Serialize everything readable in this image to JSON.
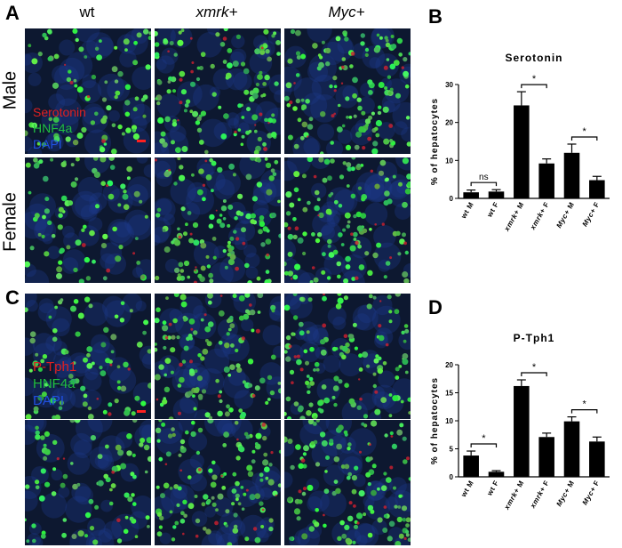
{
  "panel_letters": {
    "a": "A",
    "b": "B",
    "c": "C",
    "d": "D"
  },
  "columns": {
    "wt": "wt",
    "xmrk": "xmrk+",
    "myc": "Myc+"
  },
  "rows": {
    "male": "Male",
    "female": "Female"
  },
  "legend_top": {
    "l1": "Serotonin",
    "l2": "HNF4a",
    "l3": "DAPI"
  },
  "legend_bottom": {
    "l1": "P-Tph1",
    "l2": "HNF4a",
    "l3": "DAPI"
  },
  "colors": {
    "red": "#e02020",
    "green": "#20c040",
    "blue": "#2050e0",
    "bar": "#000000"
  },
  "chart_data": [
    {
      "type": "bar",
      "title": "Serotonin",
      "ylabel": "% of hepatocytes",
      "xlabel": "",
      "ylim": [
        0,
        30
      ],
      "yticks": [
        0,
        10,
        20,
        30
      ],
      "categories": [
        "wt M",
        "wt F",
        "xmrk+ M",
        "xmrk+ F",
        "Myc+ M",
        "Myc+ F"
      ],
      "values": [
        1.6,
        1.8,
        24.5,
        9.2,
        12.0,
        4.8
      ],
      "errors": [
        0.6,
        0.5,
        3.6,
        1.2,
        2.3,
        1.0
      ],
      "annotations": [
        {
          "from": 0,
          "to": 1,
          "label": "ns"
        },
        {
          "from": 2,
          "to": 3,
          "label": "*"
        },
        {
          "from": 4,
          "to": 5,
          "label": "*"
        }
      ]
    },
    {
      "type": "bar",
      "title": "P-Tph1",
      "ylabel": "% of hepatocytes",
      "xlabel": "",
      "ylim": [
        0,
        20
      ],
      "yticks": [
        0,
        5,
        10,
        15,
        20
      ],
      "categories": [
        "wt M",
        "wt F",
        "xmrk+ M",
        "xmrk+ F",
        "Myc+ M",
        "Myc+ F"
      ],
      "values": [
        3.8,
        0.9,
        16.2,
        7.1,
        9.9,
        6.3
      ],
      "errors": [
        0.8,
        0.2,
        1.1,
        0.7,
        0.8,
        0.8
      ],
      "annotations": [
        {
          "from": 0,
          "to": 1,
          "label": "*"
        },
        {
          "from": 2,
          "to": 3,
          "label": "*"
        },
        {
          "from": 4,
          "to": 5,
          "label": "*"
        }
      ]
    }
  ]
}
